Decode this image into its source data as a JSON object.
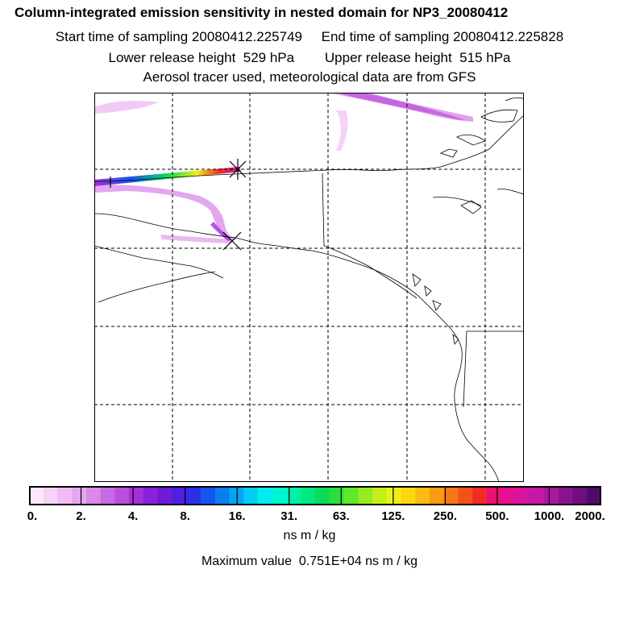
{
  "header": {
    "title": "Column-integrated emission sensitivity in nested domain for NP3_20080412",
    "line2": "Start time of sampling 20080412.225749     End time of sampling 20080412.225828",
    "line3": "Lower release height  529 hPa        Upper release height  515 hPa",
    "line4": "Aerosol tracer used, meteorological data are from GFS"
  },
  "colorbar": {
    "tick_labels": [
      "0.",
      "2.",
      "4.",
      "8.",
      "16.",
      "31.",
      "63.",
      "125.",
      "250.",
      "500.",
      "1000.",
      "2000."
    ],
    "units": "ns m / kg",
    "colors": [
      "#fbeafb",
      "#f5d3f7",
      "#efbdf3",
      "#e6a6ef",
      "#d88ae9",
      "#c76ae3",
      "#b84ddf",
      "#a62ed9",
      "#8a20d9",
      "#6d1ad9",
      "#4d1fe0",
      "#2c2fe8",
      "#1555ee",
      "#0b7df2",
      "#05a5f5",
      "#02cdf7",
      "#00ecf0",
      "#00f5d2",
      "#00f0aa",
      "#00e882",
      "#08dc5a",
      "#2ae03a",
      "#60e82a",
      "#94ec20",
      "#c4f01a",
      "#ecf014",
      "#fcd810",
      "#fcbb10",
      "#fa9a10",
      "#f77612",
      "#f45018",
      "#f22a2a",
      "#ee1070",
      "#e61090",
      "#d814a0",
      "#c418a6",
      "#a8189c",
      "#8a148e",
      "#6c107e",
      "#500a6a"
    ]
  },
  "max_value": "Maximum value  0.751E+04 ns m / kg"
}
